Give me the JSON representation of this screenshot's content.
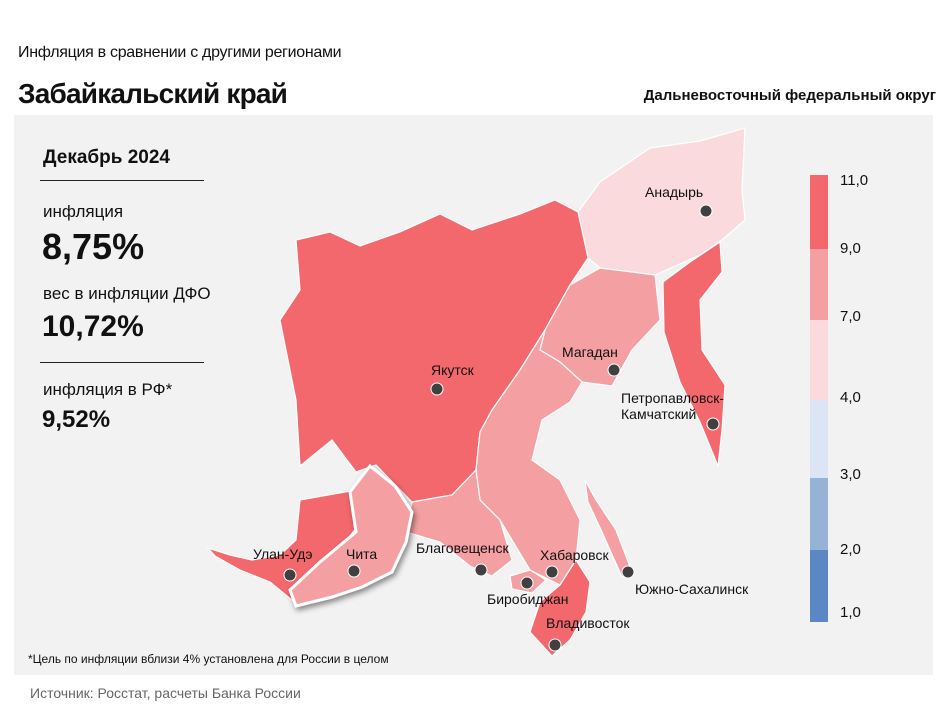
{
  "header": {
    "subtitle": "Инфляция  в сравнении  с другими  регионами",
    "title": "Забайкальский край",
    "district": "Дальневосточный федеральный округ"
  },
  "stats": {
    "period": "Декабрь 2024",
    "inflation_label": "инфляция",
    "inflation_value": "8,75%",
    "weight_label": "вес в инфляции  ДФО",
    "weight_value": "10,72%",
    "rf_label": "инфляция  в РФ*",
    "rf_value": "9,52%"
  },
  "cities": {
    "anadyr": "Анадырь",
    "yakutsk": "Якутск",
    "magadan": "Магадан",
    "petropavlovsk": "Петропавловск-\nКамчатский",
    "ulan_ude": "Улан-Удэ",
    "chita": "Чита",
    "blagoveshchensk": "Благовещенск",
    "khabarovsk": "Хабаровск",
    "birobidzhan": "Биробиджан",
    "yuzhno": "Южно-Сахалинск",
    "vladivostok": "Владивосток"
  },
  "legend": {
    "labels": [
      "11,0",
      "9,0",
      "7,0",
      "4,0",
      "3,0",
      "2,0",
      "1,0"
    ],
    "colors": [
      "#f2686d",
      "#f4a0a2",
      "#fadadd",
      "#dbe5f3",
      "#95b3d7",
      "#5b87c5"
    ]
  },
  "region_colors": {
    "high": "#f2686d",
    "medium": "#f4a0a2",
    "low": "#fadadd"
  },
  "footnote": "*Цель по инфляции вблизи 4% установлена для России в целом",
  "source": "Источник: Росстат, расчеты Банка России"
}
